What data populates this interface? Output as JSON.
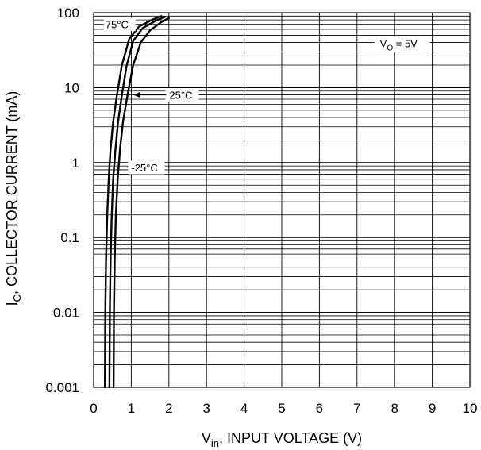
{
  "chart_data": {
    "type": "line",
    "scale": {
      "x": "linear",
      "y": "log"
    },
    "xlim": [
      0,
      10
    ],
    "ylim": [
      0.001,
      100
    ],
    "grid": true,
    "xlabel": {
      "main": "V",
      "sub": "in",
      "rest": ", INPUT VOLTAGE (V)"
    },
    "ylabel": {
      "main": "I",
      "sub": "C",
      "rest": ", COLLECTOR CURRENT (mA)"
    },
    "x_ticks": [
      {
        "value": 0,
        "label": "0"
      },
      {
        "value": 1,
        "label": "1"
      },
      {
        "value": 2,
        "label": "2"
      },
      {
        "value": 3,
        "label": "3"
      },
      {
        "value": 4,
        "label": "4"
      },
      {
        "value": 5,
        "label": "5"
      },
      {
        "value": 6,
        "label": "6"
      },
      {
        "value": 7,
        "label": "7"
      },
      {
        "value": 8,
        "label": "8"
      },
      {
        "value": 9,
        "label": "9"
      },
      {
        "value": 10,
        "label": "10"
      }
    ],
    "y_ticks": [
      {
        "value": 100,
        "label": "100"
      },
      {
        "value": 10,
        "label": "10"
      },
      {
        "value": 1,
        "label": "1"
      },
      {
        "value": 0.1,
        "label": "0.1"
      },
      {
        "value": 0.01,
        "label": "0.01"
      },
      {
        "value": 0.001,
        "label": "0.001"
      }
    ],
    "series": [
      {
        "name": "75°C",
        "x": [
          0.3,
          0.31,
          0.33,
          0.36,
          0.4,
          0.45,
          0.52,
          0.62,
          0.75,
          0.95,
          1.2,
          1.55,
          1.8
        ],
        "y": [
          0.001,
          0.01,
          0.05,
          0.2,
          0.6,
          1.5,
          3.5,
          8,
          20,
          45,
          65,
          80,
          90
        ]
      },
      {
        "name": "25°C",
        "x": [
          0.42,
          0.43,
          0.45,
          0.48,
          0.52,
          0.58,
          0.65,
          0.75,
          0.88,
          1.05,
          1.3,
          1.65,
          1.9
        ],
        "y": [
          0.001,
          0.01,
          0.05,
          0.2,
          0.6,
          1.5,
          3.5,
          8,
          20,
          42,
          62,
          78,
          88
        ]
      },
      {
        "name": "-25°C",
        "x": [
          0.53,
          0.54,
          0.56,
          0.59,
          0.64,
          0.7,
          0.78,
          0.9,
          1.05,
          1.25,
          1.5,
          1.8,
          2.0
        ],
        "y": [
          0.001,
          0.01,
          0.05,
          0.2,
          0.6,
          1.5,
          3.5,
          8,
          20,
          40,
          58,
          75,
          85
        ]
      }
    ],
    "annotations": [
      {
        "text": "75°C",
        "at": [
          0.65,
          70
        ]
      },
      {
        "text": "25°C",
        "at": [
          2.35,
          8.0
        ]
      },
      {
        "text": "-25°C",
        "at": [
          1.4,
          0.86
        ]
      },
      {
        "vo": {
          "main": "V",
          "sub": "O",
          "rest": " = 5V"
        },
        "at": [
          8.2,
          38
        ]
      }
    ]
  }
}
